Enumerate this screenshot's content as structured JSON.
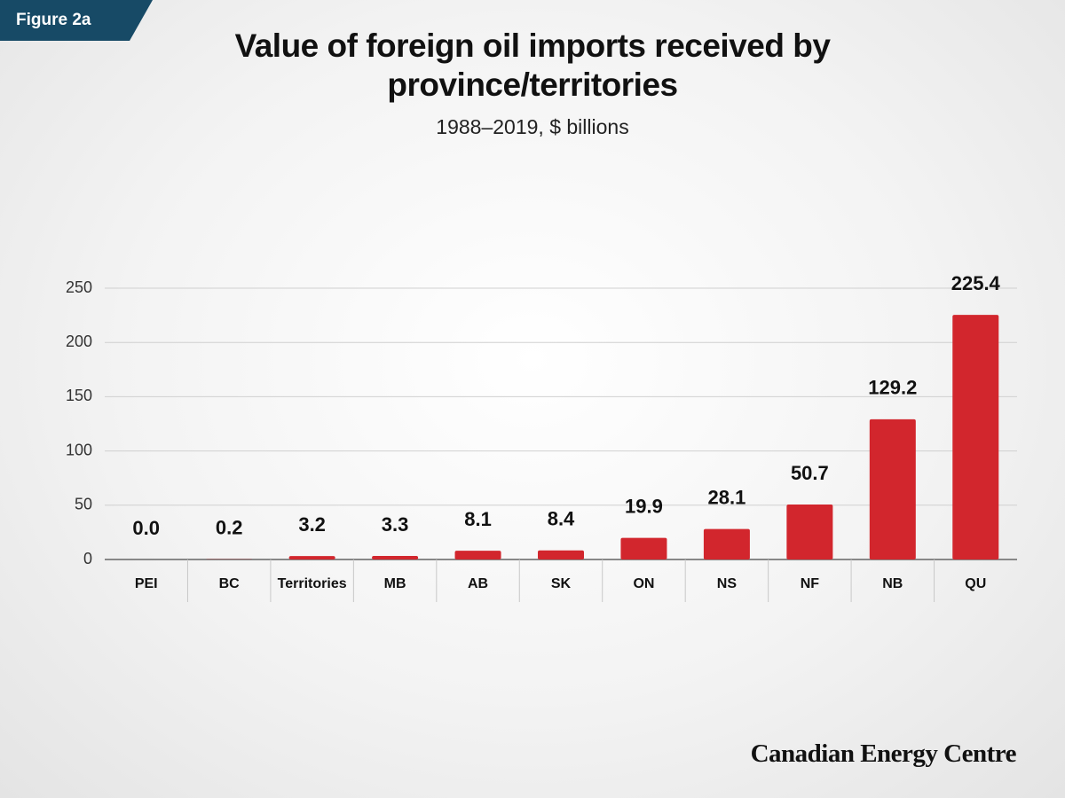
{
  "badge": "Figure 2a",
  "chart_data": {
    "type": "bar",
    "title": "Value of foreign oil imports received by province/territories",
    "subtitle": "1988–2019, $ billions",
    "categories": [
      "PEI",
      "BC",
      "Territories",
      "MB",
      "AB",
      "SK",
      "ON",
      "NS",
      "NF",
      "NB",
      "QU"
    ],
    "values": [
      0,
      0.2,
      3.2,
      3.3,
      8.1,
      8.4,
      19.9,
      28.1,
      50.7,
      129.2,
      225.4
    ],
    "value_labels": [
      "0.0",
      "0.2",
      "3.2",
      "3.3",
      "8.1",
      "8.4",
      "19.9",
      "28.1",
      "50.7",
      "129.2",
      "225.4"
    ],
    "color": "#d2262d",
    "ylim": [
      0,
      250
    ],
    "yticks": [
      0,
      50,
      100,
      150,
      200,
      250
    ],
    "grid": true
  },
  "source": "Canadian Energy Centre"
}
